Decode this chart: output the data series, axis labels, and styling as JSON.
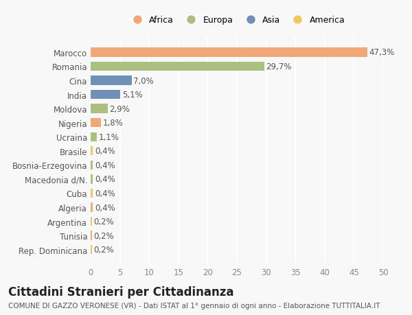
{
  "countries": [
    "Marocco",
    "Romania",
    "Cina",
    "India",
    "Moldova",
    "Nigeria",
    "Ucraina",
    "Brasile",
    "Bosnia-Erzegovina",
    "Macedonia d/N.",
    "Cuba",
    "Algeria",
    "Argentina",
    "Tunisia",
    "Rep. Dominicana"
  ],
  "values": [
    47.3,
    29.7,
    7.0,
    5.1,
    2.9,
    1.8,
    1.1,
    0.4,
    0.4,
    0.4,
    0.4,
    0.4,
    0.2,
    0.2,
    0.2
  ],
  "labels": [
    "47,3%",
    "29,7%",
    "7,0%",
    "5,1%",
    "2,9%",
    "1,8%",
    "1,1%",
    "0,4%",
    "0,4%",
    "0,4%",
    "0,4%",
    "0,4%",
    "0,2%",
    "0,2%",
    "0,2%"
  ],
  "continents": [
    "Africa",
    "Europa",
    "Asia",
    "Asia",
    "Europa",
    "Africa",
    "Europa",
    "America",
    "Europa",
    "Europa",
    "America",
    "Africa",
    "America",
    "Africa",
    "America"
  ],
  "colors": {
    "Africa": "#F0A878",
    "Europa": "#AABF80",
    "Asia": "#7090B8",
    "America": "#F0C860"
  },
  "legend_order": [
    "Africa",
    "Europa",
    "Asia",
    "America"
  ],
  "xlim": [
    0,
    50
  ],
  "xticks": [
    0,
    5,
    10,
    15,
    20,
    25,
    30,
    35,
    40,
    45,
    50
  ],
  "title": "Cittadini Stranieri per Cittadinanza",
  "subtitle": "COMUNE DI GAZZO VERONESE (VR) - Dati ISTAT al 1° gennaio di ogni anno - Elaborazione TUTTITALIA.IT",
  "bg_color": "#F8F8F8",
  "grid_color": "#FFFFFF",
  "bar_height": 0.65,
  "label_fontsize": 8.5,
  "tick_fontsize": 8.5,
  "title_fontsize": 12,
  "subtitle_fontsize": 7.5
}
